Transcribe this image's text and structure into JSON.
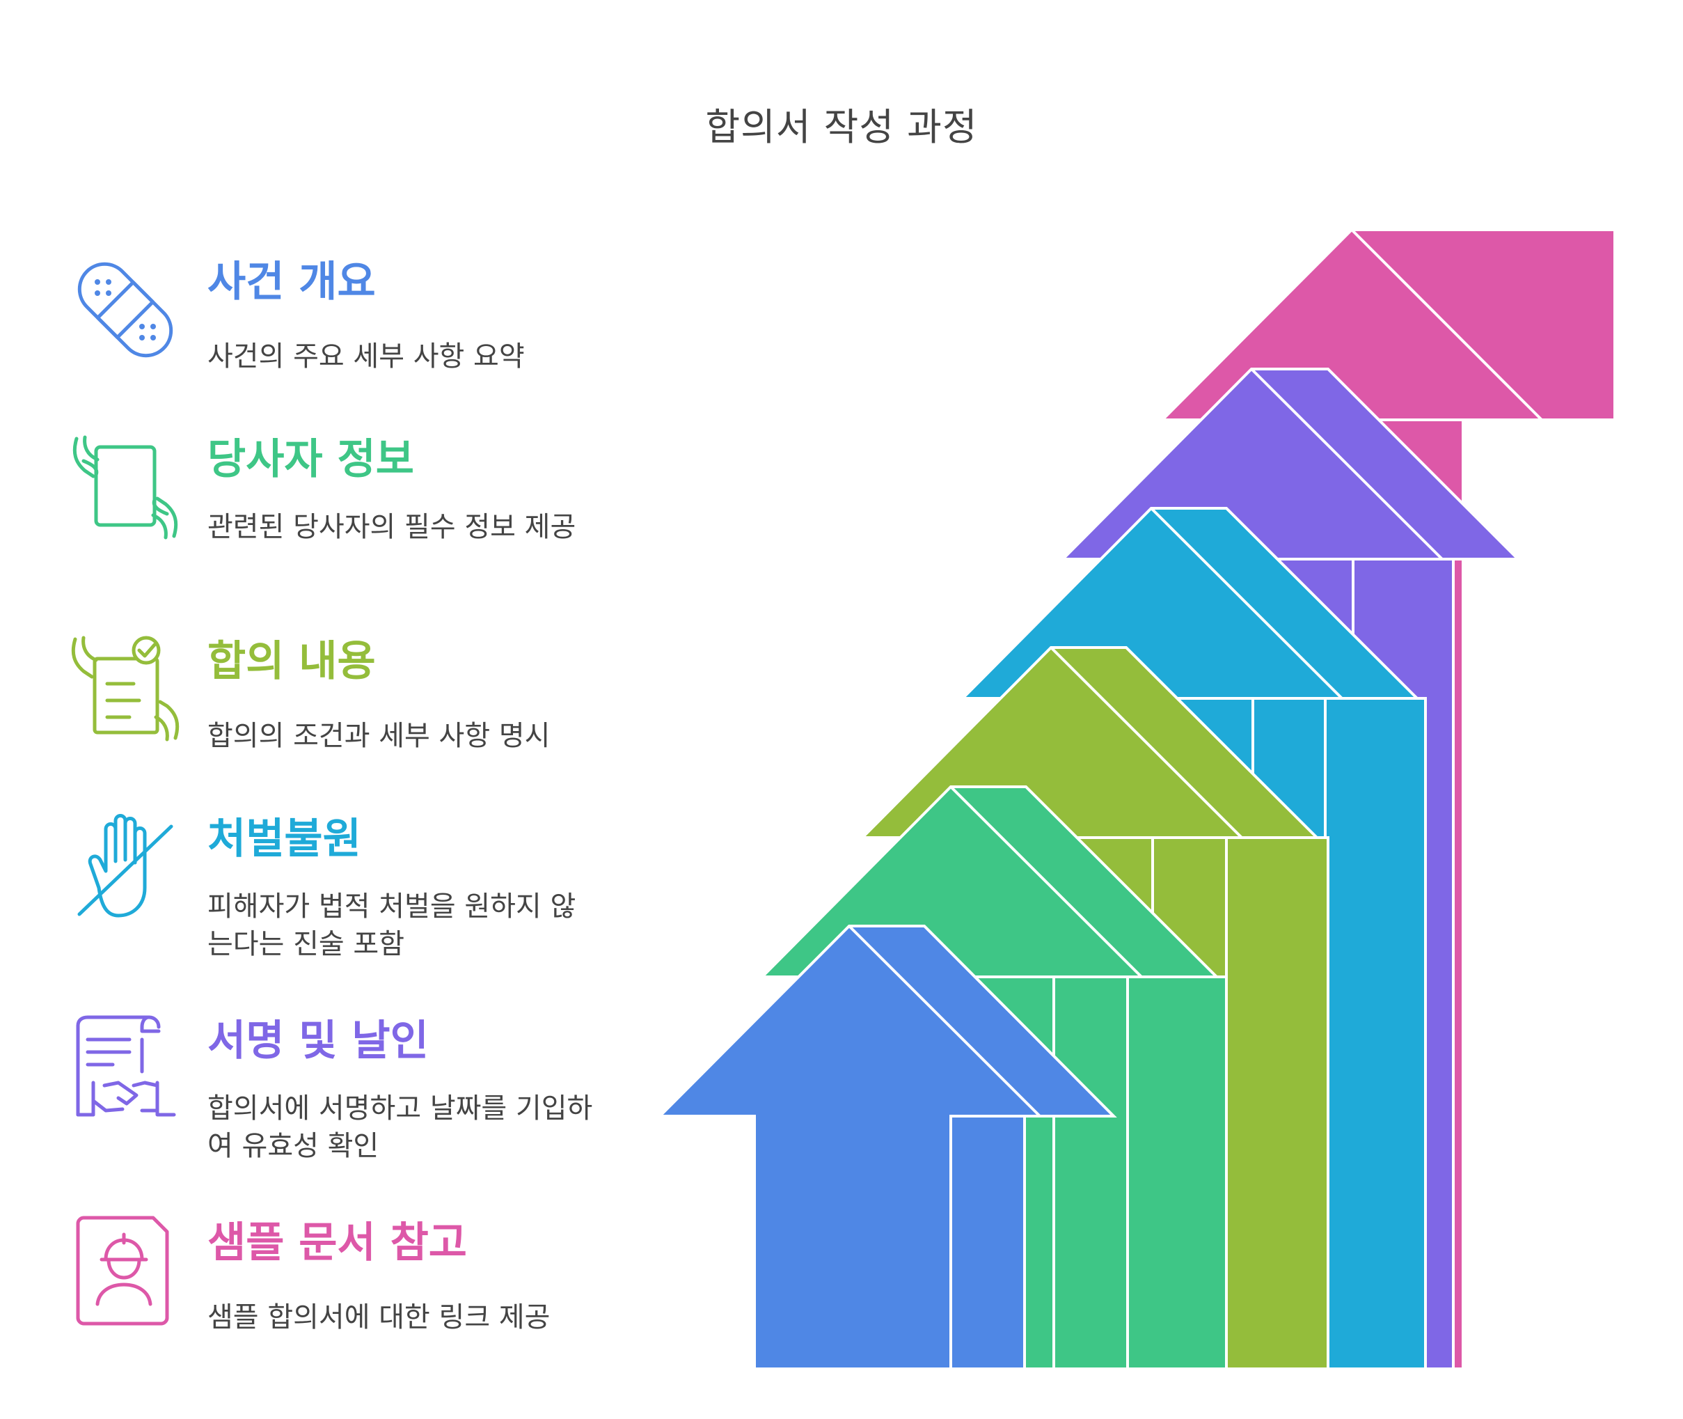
{
  "title": "합의서 작성 과정",
  "steps": [
    {
      "title": "사건 개요",
      "description": "사건의 주요 세부 사항 요약",
      "color": "#4F87E5",
      "icon": "bandage-icon"
    },
    {
      "title": "당사자 정보",
      "description": "관련된 당사자의 필수 정보 제공",
      "color": "#3EC686",
      "icon": "hands-holding-document-icon"
    },
    {
      "title": "합의 내용",
      "description": "합의의 조건과 세부 사항 명시",
      "color": "#94BD3B",
      "icon": "hands-checklist-icon"
    },
    {
      "title": "처벌불원",
      "description": "피해자가 법적 처벌을 원하지 않는다는 진술 포함",
      "color": "#1FAAD8",
      "icon": "hand-stop-slash-icon"
    },
    {
      "title": "서명 및 날인",
      "description": "합의서에 서명하고 날짜를 기입하여 유효성 확인",
      "color": "#7F67E6",
      "icon": "contract-handshake-icon"
    },
    {
      "title": "샘플 문서 참고",
      "description": "샘플 합의서에 대한 링크 제공",
      "color": "#DD58A8",
      "icon": "worker-profile-card-icon"
    }
  ]
}
